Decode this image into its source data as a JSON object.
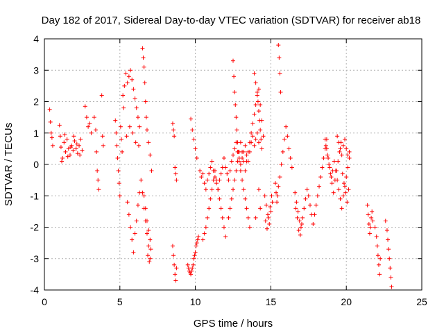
{
  "chart_data": {
    "type": "scatter",
    "title": "Day 182 of 2017, Sidereal Day-to-day VTEC variation (SDTVAR) for receiver ab18",
    "xlabel": "GPS time / hours",
    "ylabel": "SDTVAR / TECUs",
    "xlim": [
      0,
      25
    ],
    "ylim": [
      -4,
      4
    ],
    "xticks": [
      0,
      5,
      10,
      15,
      20,
      25
    ],
    "yticks": [
      -4,
      -3,
      -2,
      -1,
      0,
      1,
      2,
      3,
      4
    ],
    "grid": true,
    "marker": "+",
    "color": "#ff0000",
    "series": [
      {
        "name": "SDTVAR",
        "x": [
          0.35,
          0.4,
          0.45,
          0.5,
          0.55,
          1.0,
          1.05,
          1.1,
          1.2,
          1.3,
          1.4,
          1.5,
          1.6,
          1.7,
          1.8,
          1.9,
          2.0,
          2.1,
          2.2,
          2.3,
          2.4,
          2.5,
          1.15,
          1.35,
          1.55,
          1.75,
          1.95,
          2.15,
          2.35,
          2.7,
          2.8,
          2.9,
          3.0,
          3.1,
          3.3,
          3.4,
          3.45,
          3.5,
          3.55,
          3.6,
          3.8,
          3.85,
          3.9,
          4.7,
          4.75,
          4.8,
          4.85,
          4.9,
          4.95,
          5.0,
          5.05,
          5.1,
          5.15,
          5.2,
          5.25,
          5.3,
          5.4,
          5.5,
          5.6,
          5.7,
          5.8,
          5.9,
          6.0,
          6.1,
          6.2,
          6.3,
          5.45,
          5.65,
          5.85,
          6.05,
          6.25,
          5.5,
          5.6,
          5.7,
          5.8,
          5.9,
          6.0,
          6.1,
          6.2,
          6.3,
          6.4,
          6.5,
          6.6,
          6.7,
          6.8,
          6.9,
          7.0,
          6.5,
          6.55,
          6.6,
          6.65,
          6.7,
          6.75,
          6.8,
          6.9,
          7.0,
          7.1,
          6.6,
          6.7,
          6.8,
          6.9,
          7.0,
          7.05,
          6.85,
          6.95,
          8.5,
          8.55,
          8.6,
          8.65,
          8.7,
          8.75,
          8.5,
          8.55,
          8.6,
          8.65,
          8.7,
          8.75,
          9.5,
          9.6,
          9.7,
          9.8,
          9.9,
          10.0,
          10.1,
          10.2,
          9.55,
          9.65,
          9.75,
          9.85,
          9.95,
          10.05,
          10.15,
          9.7,
          9.8,
          9.9,
          10.0,
          10.1,
          10.3,
          10.4,
          10.5,
          10.6,
          10.7,
          10.8,
          10.9,
          11.0,
          11.1,
          11.2,
          11.3,
          11.4,
          11.5,
          11.6,
          11.7,
          11.8,
          11.9,
          12.0,
          12.1,
          12.2,
          12.3,
          12.4,
          12.5,
          12.6,
          12.7,
          12.8,
          12.9,
          13.0,
          13.1,
          13.2,
          13.3,
          13.4,
          13.5,
          13.6,
          13.7,
          13.8,
          13.9,
          14.0,
          14.1,
          14.2,
          10.5,
          10.6,
          10.7,
          10.8,
          10.9,
          11.0,
          11.1,
          11.2,
          11.3,
          11.4,
          11.5,
          11.6,
          11.7,
          11.8,
          11.9,
          12.0,
          12.2,
          12.3,
          12.4,
          12.5,
          12.6,
          12.7,
          12.8,
          12.9,
          13.0,
          13.1,
          13.2,
          13.3,
          13.4,
          13.5,
          13.6,
          13.7,
          13.8,
          13.9,
          14.0,
          14.1,
          14.2,
          14.3,
          14.4,
          14.5,
          12.5,
          12.55,
          12.6,
          12.65,
          12.7,
          12.75,
          12.8,
          12.85,
          12.9,
          13.0,
          13.1,
          13.2,
          13.3,
          13.4,
          13.5,
          13.6,
          13.9,
          14.0,
          14.1,
          14.15,
          14.2,
          14.25,
          14.3,
          14.35,
          14.4,
          14.0,
          14.2,
          14.3,
          14.6,
          14.7,
          14.8,
          14.9,
          15.0,
          15.1,
          14.65,
          14.75,
          14.85,
          14.95,
          15.05,
          15.3,
          15.35,
          15.4,
          15.45,
          15.5,
          15.6,
          15.7,
          15.8,
          15.9,
          16.0,
          16.1,
          16.2,
          16.3,
          16.4,
          15.5,
          15.55,
          15.6,
          15.65,
          16.6,
          16.7,
          16.8,
          16.9,
          17.0,
          17.1,
          17.2,
          17.3,
          17.4,
          17.5,
          17.6,
          17.7,
          17.8,
          17.9,
          18.0,
          18.1,
          18.2,
          18.3,
          18.4,
          18.5,
          18.6,
          18.7,
          16.65,
          16.75,
          16.85,
          16.95,
          17.05,
          18.6,
          18.7,
          18.8,
          18.9,
          19.0,
          19.1,
          19.2,
          19.3,
          19.4,
          19.5,
          19.6,
          19.7,
          19.8,
          19.9,
          20.0,
          20.1,
          20.2,
          18.65,
          18.75,
          18.85,
          18.95,
          19.05,
          19.15,
          19.25,
          19.35,
          19.45,
          19.55,
          19.65,
          19.75,
          19.85,
          19.95,
          20.05,
          20.15,
          19.4,
          19.5,
          19.6,
          19.7,
          19.8,
          19.9,
          20.0,
          20.1,
          20.2,
          21.4,
          21.45,
          21.5,
          21.55,
          21.6,
          21.65,
          21.7,
          21.75,
          21.9,
          22.0,
          22.05,
          22.1,
          22.15,
          22.2,
          22.25,
          22.6,
          22.7,
          22.75,
          22.8,
          22.85,
          22.9,
          22.95,
          23.0
        ],
        "y": [
          1.75,
          1.35,
          1.0,
          0.85,
          0.6,
          1.25,
          0.9,
          0.55,
          0.2,
          0.7,
          0.4,
          0.8,
          0.5,
          0.3,
          0.6,
          0.45,
          0.75,
          0.5,
          0.35,
          0.6,
          0.8,
          0.45,
          0.1,
          0.95,
          0.25,
          0.55,
          0.9,
          0.65,
          0.3,
          1.85,
          1.5,
          1.2,
          1.3,
          1.0,
          1.5,
          1.1,
          0.4,
          -0.2,
          -0.5,
          -0.8,
          2.2,
          0.9,
          0.6,
          1.4,
          1.0,
          0.6,
          0.2,
          -0.2,
          -0.6,
          -1.0,
          1.2,
          0.8,
          0.4,
          2.2,
          1.8,
          2.5,
          2.9,
          2.6,
          2.8,
          3.0,
          2.7,
          2.4,
          2.1,
          1.8,
          1.5,
          1.2,
          0.9,
          1.2,
          1.0,
          0.7,
          0.6,
          -1.2,
          -1.6,
          -2.0,
          -2.4,
          -2.8,
          -2.2,
          -1.8,
          -1.3,
          -0.9,
          -0.5,
          -0.9,
          -1.4,
          -1.8,
          -2.2,
          -2.6,
          -3.0,
          3.7,
          3.4,
          3.1,
          2.6,
          2.0,
          1.5,
          1.1,
          0.7,
          0.3,
          -0.2,
          -1.0,
          -1.4,
          -1.8,
          -2.1,
          -2.4,
          -2.7,
          -2.9,
          -3.1,
          -2.6,
          -2.9,
          -3.2,
          -3.5,
          -3.7,
          -3.3,
          1.3,
          1.1,
          0.9,
          -0.1,
          -0.3,
          -0.5,
          -3.2,
          -3.4,
          -3.5,
          -3.3,
          -3.0,
          -2.8,
          -2.5,
          -2.3,
          -3.3,
          -3.45,
          -3.4,
          -3.2,
          -2.9,
          -2.6,
          -2.4,
          1.45,
          1.1,
          0.8,
          0.5,
          0.2,
          -0.2,
          -0.4,
          -0.3,
          -0.6,
          -0.8,
          -0.5,
          -0.3,
          -0.1,
          0.1,
          -0.2,
          -0.4,
          -0.6,
          -0.8,
          -0.5,
          -0.3,
          -0.1,
          0.2,
          -0.1,
          -0.3,
          -0.5,
          -0.2,
          0.1,
          0.3,
          0.5,
          0.7,
          0.4,
          0.2,
          0.0,
          0.2,
          0.4,
          0.6,
          0.3,
          0.1,
          0.4,
          0.7,
          0.9,
          0.6,
          0.8,
          1.0,
          0.7,
          -2.4,
          -2.2,
          -2.0,
          -1.7,
          -1.4,
          -1.1,
          -0.8,
          -0.5,
          -0.2,
          -0.5,
          -0.8,
          -1.1,
          -1.4,
          -1.7,
          -2.0,
          -2.3,
          -1.7,
          -1.4,
          -1.1,
          -0.8,
          -0.5,
          -0.2,
          0.1,
          0.4,
          0.7,
          0.4,
          0.1,
          -0.2,
          0.1,
          0.4,
          0.7,
          1.0,
          1.3,
          1.6,
          1.9,
          2.2,
          2.4,
          1.9,
          1.4,
          0.9,
          3.3,
          2.8,
          2.3,
          1.9,
          1.5,
          1.1,
          0.7,
          0.4,
          0.1,
          -0.2,
          -0.5,
          -0.8,
          -1.1,
          -1.4,
          -1.7,
          -2.0,
          2.9,
          2.6,
          2.3,
          2.0,
          1.7,
          1.4,
          1.1,
          0.8,
          0.5,
          -1.7,
          -0.8,
          -1.4,
          -1.0,
          -1.3,
          -1.6,
          -1.9,
          -1.5,
          -1.2,
          -1.8,
          -2.05,
          -1.7,
          -1.35,
          -1.0,
          -0.6,
          -0.9,
          -1.2,
          -1.0,
          -0.7,
          -0.4,
          0.0,
          0.4,
          0.8,
          1.2,
          0.9,
          0.5,
          0.2,
          -0.1,
          3.8,
          3.4,
          2.9,
          2.3,
          -0.9,
          -1.2,
          -1.5,
          -1.8,
          -2.0,
          -1.7,
          -1.4,
          -1.1,
          -0.8,
          -1.0,
          -1.3,
          -1.6,
          -1.9,
          -1.6,
          -1.3,
          -1.0,
          -0.7,
          -0.4,
          -0.1,
          0.2,
          0.5,
          0.8,
          -1.4,
          -1.7,
          -2.1,
          -2.25,
          -1.9,
          0.8,
          0.5,
          0.2,
          -0.1,
          -0.4,
          -0.2,
          0.1,
          -0.2,
          -0.5,
          -0.8,
          -1.1,
          -1.4,
          -1.0,
          -0.7,
          -0.4,
          -0.1,
          0.2,
          0.6,
          0.3,
          0.0,
          -0.3,
          -0.6,
          -0.9,
          -0.5,
          -0.2,
          0.1,
          0.4,
          0.7,
          -0.3,
          -0.6,
          -0.9,
          -1.2,
          -0.8,
          0.9,
          0.7,
          0.5,
          0.3,
          0.6,
          0.8,
          0.5,
          0.3,
          0.4,
          -1.3,
          -1.6,
          -1.9,
          -2.2,
          -2.0,
          -1.7,
          -1.5,
          -1.8,
          -2.0,
          -2.3,
          -2.6,
          -2.9,
          -3.2,
          -3.5,
          -3.0,
          -1.8,
          -2.1,
          -2.4,
          -2.7,
          -3.0,
          -3.3,
          -3.6,
          -3.9
        ]
      }
    ]
  }
}
